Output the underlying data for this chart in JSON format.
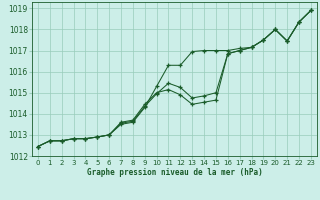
{
  "title": "Graphe pression niveau de la mer (hPa)",
  "background_color": "#cceee8",
  "grid_color": "#99ccbb",
  "line_color": "#1a5c2a",
  "xlim": [
    -0.5,
    23.5
  ],
  "ylim": [
    1012,
    1019.3
  ],
  "yticks": [
    1012,
    1013,
    1014,
    1015,
    1016,
    1017,
    1018,
    1019
  ],
  "xticks": [
    0,
    1,
    2,
    3,
    4,
    5,
    6,
    7,
    8,
    9,
    10,
    11,
    12,
    13,
    14,
    15,
    16,
    17,
    18,
    19,
    20,
    21,
    22,
    23
  ],
  "series1": [
    1012.45,
    1012.72,
    1012.72,
    1012.82,
    1012.82,
    1012.9,
    1013.0,
    1013.5,
    1013.6,
    1014.3,
    1015.3,
    1016.3,
    1016.3,
    1016.95,
    1017.0,
    1017.0,
    1017.0,
    1017.1,
    1017.15,
    1017.5,
    1018.0,
    1017.45,
    1018.35,
    1018.9
  ],
  "series2": [
    1012.45,
    1012.72,
    1012.72,
    1012.82,
    1012.82,
    1012.9,
    1013.0,
    1013.55,
    1013.65,
    1014.35,
    1014.95,
    1015.45,
    1015.25,
    1014.75,
    1014.85,
    1015.0,
    1016.85,
    1017.0,
    1017.15,
    1017.5,
    1018.0,
    1017.45,
    1018.35,
    1018.9
  ],
  "series3": [
    1012.45,
    1012.72,
    1012.72,
    1012.82,
    1012.82,
    1012.9,
    1013.0,
    1013.6,
    1013.7,
    1014.45,
    1015.0,
    1015.15,
    1014.9,
    1014.45,
    1014.55,
    1014.65,
    1016.85,
    1017.0,
    1017.15,
    1017.5,
    1018.0,
    1017.45,
    1018.35,
    1018.9
  ]
}
